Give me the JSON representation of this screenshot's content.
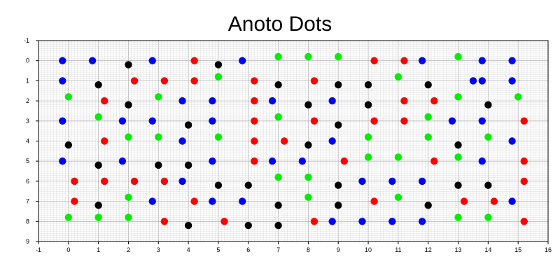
{
  "chart_data": {
    "type": "scatter",
    "title": "Anoto Dots",
    "xlabel": "",
    "ylabel": "",
    "xlim": [
      -1,
      16
    ],
    "ylim": [
      9,
      -1
    ],
    "y_inverted": true,
    "grid": true,
    "x_ticks": [
      "-1",
      "0",
      "1",
      "2",
      "3",
      "4",
      "5",
      "6",
      "7",
      "8",
      "9",
      "10",
      "11",
      "12",
      "13",
      "14",
      "15",
      "16"
    ],
    "y_ticks": [
      "-1",
      "0",
      "1",
      "2",
      "3",
      "4",
      "5",
      "6",
      "7",
      "8",
      "9"
    ],
    "colors": {
      "blue": "#0000ff",
      "red": "#ff0000",
      "green": "#00ee00",
      "black": "#000000",
      "grid_minor": "#dcdcdc",
      "grid_major": "#b4b4b4"
    },
    "series": [
      {
        "color": "blue",
        "points": [
          [
            -0.2,
            0
          ],
          [
            0.8,
            0
          ],
          [
            2.8,
            0
          ],
          [
            5.8,
            0
          ],
          [
            11.8,
            0
          ],
          [
            13.8,
            0
          ],
          [
            14.8,
            0
          ],
          [
            -0.2,
            1
          ],
          [
            13.5,
            1
          ],
          [
            13.8,
            1
          ],
          [
            14.8,
            1
          ],
          [
            3.8,
            2
          ],
          [
            4.8,
            2
          ],
          [
            6.8,
            2
          ],
          [
            8.8,
            2
          ],
          [
            -0.2,
            3
          ],
          [
            1.8,
            3
          ],
          [
            2.8,
            3
          ],
          [
            4.8,
            3
          ],
          [
            12.8,
            3
          ],
          [
            13.8,
            3
          ],
          [
            3.8,
            4
          ],
          [
            8.8,
            4
          ],
          [
            14.8,
            4
          ],
          [
            -0.2,
            5
          ],
          [
            1.8,
            5
          ],
          [
            4.8,
            5
          ],
          [
            6.8,
            5
          ],
          [
            7.8,
            5
          ],
          [
            13.8,
            5
          ],
          [
            3.8,
            6
          ],
          [
            9.8,
            6
          ],
          [
            10.8,
            6
          ],
          [
            11.8,
            6
          ],
          [
            2.8,
            7
          ],
          [
            4.8,
            7
          ],
          [
            5.8,
            7
          ],
          [
            14.8,
            7
          ],
          [
            8.8,
            8
          ],
          [
            9.8,
            8
          ],
          [
            10.8,
            8
          ],
          [
            11.8,
            8
          ]
        ]
      },
      {
        "color": "red",
        "points": [
          [
            4.2,
            0
          ],
          [
            10.2,
            0
          ],
          [
            11.2,
            0
          ],
          [
            2.2,
            1
          ],
          [
            3.2,
            1
          ],
          [
            4.2,
            1
          ],
          [
            6.2,
            1
          ],
          [
            8.2,
            1
          ],
          [
            1.2,
            2
          ],
          [
            6.2,
            2
          ],
          [
            11.2,
            2
          ],
          [
            12.2,
            2
          ],
          [
            6.2,
            3
          ],
          [
            8.2,
            3
          ],
          [
            10.2,
            3
          ],
          [
            11.2,
            3
          ],
          [
            15.2,
            3
          ],
          [
            1.2,
            4
          ],
          [
            6.2,
            4
          ],
          [
            7.2,
            4
          ],
          [
            6.2,
            5
          ],
          [
            9.2,
            5
          ],
          [
            12.2,
            5
          ],
          [
            15.2,
            5
          ],
          [
            0.2,
            6
          ],
          [
            1.2,
            6
          ],
          [
            2.2,
            6
          ],
          [
            3.2,
            6
          ],
          [
            15.2,
            6
          ],
          [
            0.2,
            7
          ],
          [
            4.2,
            7
          ],
          [
            10.2,
            7
          ],
          [
            13.2,
            7
          ],
          [
            14.2,
            7
          ],
          [
            3.2,
            8
          ],
          [
            5.2,
            8
          ],
          [
            8.2,
            8
          ],
          [
            15.2,
            8
          ]
        ]
      },
      {
        "color": "green",
        "points": [
          [
            7,
            -0.2
          ],
          [
            8,
            -0.2
          ],
          [
            9,
            -0.2
          ],
          [
            13,
            -0.2
          ],
          [
            5,
            0.8
          ],
          [
            11,
            0.8
          ],
          [
            0,
            1.8
          ],
          [
            3,
            1.8
          ],
          [
            13,
            1.8
          ],
          [
            15,
            1.8
          ],
          [
            1,
            2.8
          ],
          [
            7,
            2.8
          ],
          [
            12,
            2.8
          ],
          [
            2,
            3.8
          ],
          [
            3,
            3.8
          ],
          [
            5,
            3.8
          ],
          [
            10,
            3.8
          ],
          [
            12,
            3.8
          ],
          [
            14,
            3.8
          ],
          [
            10,
            4.8
          ],
          [
            11,
            4.8
          ],
          [
            13,
            4.8
          ],
          [
            7,
            5.8
          ],
          [
            8,
            5.8
          ],
          [
            2,
            6.8
          ],
          [
            8,
            6.8
          ],
          [
            11,
            6.8
          ],
          [
            0,
            7.8
          ],
          [
            1,
            7.8
          ],
          [
            2,
            7.8
          ],
          [
            13,
            7.8
          ],
          [
            14,
            7.8
          ]
        ]
      },
      {
        "color": "black",
        "points": [
          [
            2,
            0.2
          ],
          [
            5,
            0.2
          ],
          [
            1,
            1.2
          ],
          [
            7,
            1.2
          ],
          [
            9,
            1.2
          ],
          [
            10,
            1.2
          ],
          [
            12,
            1.2
          ],
          [
            2,
            2.2
          ],
          [
            8,
            2.2
          ],
          [
            10,
            2.2
          ],
          [
            14,
            2.2
          ],
          [
            4,
            3.2
          ],
          [
            9,
            3.2
          ],
          [
            0,
            4.2
          ],
          [
            8,
            4.2
          ],
          [
            13,
            4.2
          ],
          [
            1,
            5.2
          ],
          [
            3,
            5.2
          ],
          [
            4,
            5.2
          ],
          [
            5,
            6.2
          ],
          [
            6,
            6.2
          ],
          [
            9,
            6.2
          ],
          [
            13,
            6.2
          ],
          [
            14,
            6.2
          ],
          [
            1,
            7.2
          ],
          [
            7,
            7.2
          ],
          [
            9,
            7.2
          ],
          [
            12,
            7.2
          ],
          [
            4,
            8.2
          ],
          [
            6,
            8.2
          ],
          [
            7,
            8.2
          ]
        ]
      }
    ]
  }
}
